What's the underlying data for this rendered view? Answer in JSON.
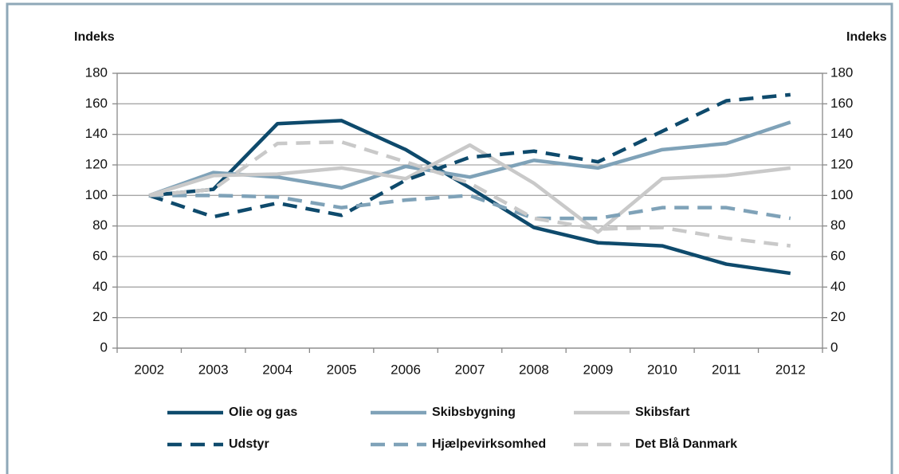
{
  "chart_data": {
    "type": "line",
    "y_label": "Indeks",
    "y2_label": "Indeks",
    "categories": [
      "2002",
      "2003",
      "2004",
      "2005",
      "2006",
      "2007",
      "2008",
      "2009",
      "2010",
      "2011",
      "2012"
    ],
    "series": [
      {
        "name": "Olie og gas",
        "color": "#0e4a6c",
        "style": "solid",
        "values": [
          100,
          104,
          147,
          149,
          130,
          105,
          79,
          69,
          67,
          55,
          49
        ]
      },
      {
        "name": "Skibsbygning",
        "color": "#7fa2b8",
        "style": "solid",
        "values": [
          100,
          115,
          112,
          105,
          119,
          112,
          123,
          118,
          130,
          134,
          148
        ]
      },
      {
        "name": "Skibsfart",
        "color": "#c9c9c9",
        "style": "solid",
        "values": [
          100,
          113,
          114,
          118,
          111,
          133,
          108,
          76,
          111,
          113,
          118
        ]
      },
      {
        "name": "Udstyr",
        "color": "#0e4a6c",
        "style": "dashed",
        "values": [
          100,
          86,
          95,
          87,
          110,
          125,
          129,
          122,
          142,
          162,
          166
        ]
      },
      {
        "name": "Hjælpevirksomhed",
        "color": "#7fa2b8",
        "style": "dashed",
        "values": [
          100,
          100,
          99,
          92,
          97,
          100,
          85,
          85,
          92,
          92,
          85
        ]
      },
      {
        "name": "Det Blå Danmark",
        "color": "#c9c9c9",
        "style": "dashed",
        "values": [
          100,
          104,
          134,
          135,
          122,
          108,
          85,
          78,
          79,
          72,
          67
        ]
      }
    ],
    "ylim": [
      0,
      180
    ],
    "yticks": [
      0,
      20,
      40,
      60,
      80,
      100,
      120,
      140,
      160,
      180
    ],
    "y2lim": [
      0,
      180
    ],
    "y2ticks": [
      0,
      20,
      40,
      60,
      80,
      100,
      120,
      140,
      160,
      180
    ],
    "grid": true,
    "legend": "bottom"
  }
}
